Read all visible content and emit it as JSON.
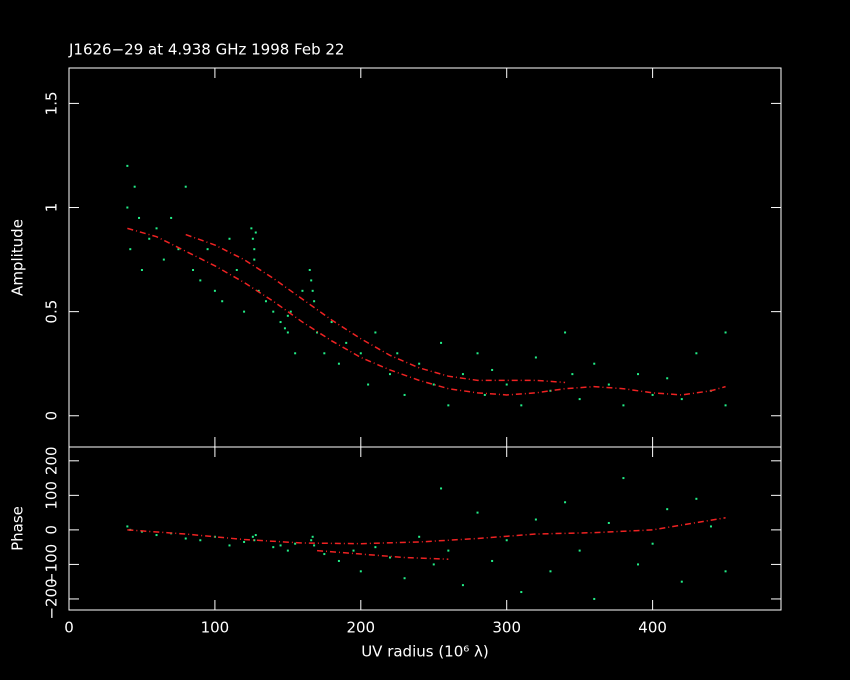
{
  "chart_data": [
    {
      "type": "scatter",
      "title": "J1626−29 at 4.938 GHz 1998 Feb 22",
      "ylabel": "Amplitude",
      "xlim": [
        0,
        488
      ],
      "xticks": [
        0,
        100,
        200,
        300,
        400
      ],
      "ylim": [
        -0.15,
        1.67
      ],
      "yticks": [
        0,
        0.5,
        1,
        1.5
      ],
      "series": [
        {
          "style": "points",
          "color": "#22ee88",
          "x": [
            40,
            40,
            42,
            45,
            48,
            50,
            55,
            60,
            65,
            70,
            75,
            80,
            85,
            90,
            95,
            100,
            105,
            110,
            115,
            120,
            125,
            126,
            127,
            127,
            128,
            130,
            135,
            140,
            145,
            148,
            150,
            150,
            152,
            155,
            160,
            165,
            166,
            167,
            168,
            170,
            175,
            180,
            185,
            190,
            200,
            205,
            210,
            220,
            225,
            230,
            240,
            250,
            255,
            260,
            270,
            280,
            285,
            290,
            300,
            310,
            320,
            330,
            340,
            345,
            350,
            360,
            370,
            380,
            390,
            400,
            410,
            420,
            430,
            440,
            450,
            450
          ],
          "values": [
            1.2,
            1.0,
            0.8,
            1.1,
            0.95,
            0.7,
            0.85,
            0.9,
            0.75,
            0.95,
            0.8,
            1.1,
            0.7,
            0.65,
            0.8,
            0.6,
            0.55,
            0.85,
            0.7,
            0.5,
            0.9,
            0.85,
            0.8,
            0.75,
            0.88,
            0.6,
            0.55,
            0.5,
            0.45,
            0.42,
            0.48,
            0.4,
            0.5,
            0.3,
            0.6,
            0.7,
            0.65,
            0.6,
            0.55,
            0.4,
            0.3,
            0.45,
            0.25,
            0.35,
            0.3,
            0.15,
            0.4,
            0.2,
            0.3,
            0.1,
            0.25,
            0.15,
            0.35,
            0.05,
            0.2,
            0.3,
            0.1,
            0.22,
            0.15,
            0.05,
            0.28,
            0.12,
            0.4,
            0.2,
            0.08,
            0.25,
            0.15,
            0.05,
            0.2,
            0.1,
            0.18,
            0.08,
            0.3,
            0.12,
            0.05,
            0.4
          ]
        },
        {
          "style": "line",
          "color": "#ee2222",
          "x": [
            40,
            60,
            80,
            100,
            120,
            140,
            160,
            180,
            200,
            220,
            240,
            260,
            280,
            300,
            320,
            340,
            360,
            380,
            400,
            420,
            440,
            450
          ],
          "values": [
            0.9,
            0.86,
            0.79,
            0.72,
            0.64,
            0.55,
            0.45,
            0.36,
            0.28,
            0.22,
            0.17,
            0.13,
            0.11,
            0.1,
            0.11,
            0.13,
            0.14,
            0.13,
            0.11,
            0.1,
            0.12,
            0.14
          ]
        },
        {
          "style": "line",
          "color": "#ee2222",
          "x": [
            80,
            100,
            120,
            140,
            160,
            180,
            200,
            220,
            240,
            260,
            280,
            300,
            320,
            340
          ],
          "values": [
            0.87,
            0.82,
            0.75,
            0.66,
            0.56,
            0.46,
            0.37,
            0.29,
            0.23,
            0.19,
            0.17,
            0.17,
            0.17,
            0.16
          ]
        }
      ]
    },
    {
      "type": "scatter",
      "ylabel": "Phase",
      "xlabel": "UV radius  (10⁶ λ)",
      "xlim": [
        0,
        488
      ],
      "xticks": [
        0,
        100,
        200,
        300,
        400
      ],
      "ylim": [
        -232,
        240
      ],
      "yticks": [
        {
          "value": -200,
          "label": "−200"
        },
        {
          "value": -100,
          "label": "−100"
        },
        0,
        100,
        200
      ],
      "series": [
        {
          "style": "points",
          "color": "#22ee88",
          "x": [
            40,
            42,
            50,
            60,
            70,
            80,
            90,
            100,
            110,
            120,
            126,
            127,
            128,
            140,
            145,
            150,
            155,
            166,
            167,
            168,
            175,
            185,
            195,
            200,
            210,
            220,
            230,
            240,
            250,
            255,
            260,
            270,
            280,
            290,
            300,
            310,
            320,
            330,
            340,
            350,
            360,
            370,
            380,
            390,
            400,
            410,
            420,
            430,
            440,
            450
          ],
          "values": [
            10,
            0,
            -5,
            -15,
            -10,
            -25,
            -30,
            -20,
            -45,
            -35,
            -20,
            -30,
            -15,
            -50,
            -45,
            -60,
            -40,
            -30,
            -20,
            -45,
            -70,
            -90,
            -60,
            -120,
            -50,
            -80,
            -140,
            -20,
            -100,
            120,
            -60,
            -160,
            50,
            -90,
            -30,
            -180,
            30,
            -120,
            80,
            -60,
            -200,
            20,
            150,
            -100,
            -40,
            60,
            -150,
            90,
            10,
            -120
          ]
        },
        {
          "style": "line",
          "color": "#ee2222",
          "x": [
            40,
            80,
            120,
            160,
            200,
            240,
            280,
            320,
            360,
            400,
            450
          ],
          "values": [
            0,
            -12,
            -28,
            -38,
            -40,
            -35,
            -25,
            -12,
            -8,
            0,
            35
          ]
        },
        {
          "style": "line",
          "color": "#ee2222",
          "x": [
            170,
            200,
            230,
            260
          ],
          "values": [
            -60,
            -70,
            -80,
            -85
          ]
        }
      ]
    }
  ]
}
